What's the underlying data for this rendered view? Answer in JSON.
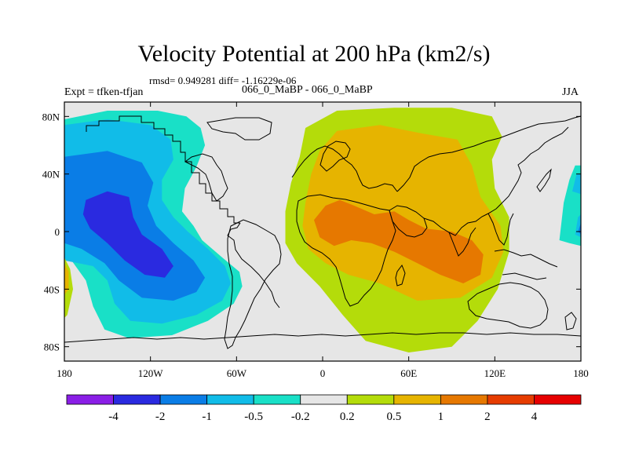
{
  "chart_data": {
    "type": "heatmap",
    "title": "Velocity Potential at 200 hPa (km2/s)",
    "stats": "rmsd= 0.949281 diff= -1.16229e-06",
    "experiment_label": "Expt = tfken-tfjan",
    "experiments": "066_0_MaBP - 066_0_MaBP",
    "season": "JJA",
    "x_ticks": [
      "180",
      "120W",
      "60W",
      "0",
      "60E",
      "120E",
      "180"
    ],
    "x_values": [
      -180,
      -120,
      -60,
      0,
      60,
      120,
      180
    ],
    "y_ticks": [
      "80N",
      "40N",
      "0",
      "40S",
      "80S"
    ],
    "y_values": [
      80,
      40,
      0,
      -40,
      -80
    ],
    "xlim": [
      -180,
      180
    ],
    "ylim": [
      -90,
      90
    ],
    "colorbar": {
      "labels": [
        "-4",
        "-2",
        "-1",
        "-0.5",
        "-0.2",
        "0.2",
        "0.5",
        "1",
        "2",
        "4"
      ],
      "colors": [
        "#8a1ee6",
        "#2a2ae0",
        "#0a7de6",
        "#11bce8",
        "#19e0c7",
        "#e6e6e6",
        "#b4dc0a",
        "#e6b400",
        "#e67800",
        "#e63c00",
        "#e60000"
      ]
    },
    "contours": [
      {
        "level": "-0.2",
        "color": "#19e0c7",
        "polygon": [
          [
            -180,
            78
          ],
          [
            -150,
            84
          ],
          [
            -115,
            84
          ],
          [
            -95,
            80
          ],
          [
            -85,
            72
          ],
          [
            -82,
            60
          ],
          [
            -88,
            45
          ],
          [
            -96,
            30
          ],
          [
            -98,
            14
          ],
          [
            -90,
            4
          ],
          [
            -84,
            -6
          ],
          [
            -70,
            -18
          ],
          [
            -58,
            -28
          ],
          [
            -56,
            -38
          ],
          [
            -62,
            -50
          ],
          [
            -80,
            -62
          ],
          [
            -105,
            -72
          ],
          [
            -135,
            -74
          ],
          [
            -152,
            -68
          ],
          [
            -160,
            -52
          ],
          [
            -165,
            -34
          ],
          [
            -175,
            -20
          ],
          [
            -180,
            -18
          ]
        ]
      },
      {
        "level": "-0.5",
        "color": "#11bce8",
        "polygon": [
          [
            -180,
            74
          ],
          [
            -150,
            78
          ],
          [
            -120,
            74
          ],
          [
            -106,
            64
          ],
          [
            -104,
            50
          ],
          [
            -112,
            36
          ],
          [
            -112,
            22
          ],
          [
            -104,
            10
          ],
          [
            -94,
            0
          ],
          [
            -80,
            -12
          ],
          [
            -68,
            -24
          ],
          [
            -64,
            -36
          ],
          [
            -70,
            -48
          ],
          [
            -88,
            -58
          ],
          [
            -112,
            -64
          ],
          [
            -134,
            -62
          ],
          [
            -145,
            -50
          ],
          [
            -150,
            -34
          ],
          [
            -160,
            -24
          ],
          [
            -180,
            -20
          ]
        ]
      },
      {
        "level": "-1",
        "color": "#0a7de6",
        "polygon": [
          [
            -180,
            52
          ],
          [
            -150,
            56
          ],
          [
            -126,
            48
          ],
          [
            -118,
            34
          ],
          [
            -122,
            18
          ],
          [
            -116,
            4
          ],
          [
            -104,
            -8
          ],
          [
            -90,
            -20
          ],
          [
            -82,
            -32
          ],
          [
            -88,
            -42
          ],
          [
            -104,
            -48
          ],
          [
            -126,
            -46
          ],
          [
            -142,
            -34
          ],
          [
            -152,
            -22
          ],
          [
            -168,
            -12
          ],
          [
            -180,
            -8
          ]
        ]
      },
      {
        "level": "-2",
        "color": "#2a2ae0",
        "polygon": [
          [
            -165,
            22
          ],
          [
            -150,
            28
          ],
          [
            -135,
            24
          ],
          [
            -132,
            10
          ],
          [
            -126,
            -2
          ],
          [
            -112,
            -12
          ],
          [
            -104,
            -24
          ],
          [
            -110,
            -32
          ],
          [
            -124,
            -30
          ],
          [
            -138,
            -20
          ],
          [
            -150,
            -8
          ],
          [
            -162,
            2
          ],
          [
            -167,
            12
          ]
        ]
      },
      {
        "level": "0.2",
        "color": "#b4dc0a",
        "polygon": [
          [
            -12,
            72
          ],
          [
            10,
            84
          ],
          [
            50,
            86
          ],
          [
            90,
            86
          ],
          [
            118,
            80
          ],
          [
            125,
            66
          ],
          [
            118,
            50
          ],
          [
            120,
            30
          ],
          [
            130,
            10
          ],
          [
            130,
            -14
          ],
          [
            122,
            -40
          ],
          [
            108,
            -62
          ],
          [
            90,
            -80
          ],
          [
            60,
            -84
          ],
          [
            30,
            -76
          ],
          [
            14,
            -58
          ],
          [
            -2,
            -38
          ],
          [
            -18,
            -22
          ],
          [
            -26,
            -8
          ],
          [
            -26,
            14
          ],
          [
            -22,
            34
          ],
          [
            -16,
            52
          ]
        ]
      },
      {
        "level": "0.5",
        "color": "#e6b400",
        "polygon": [
          [
            -2,
            56
          ],
          [
            10,
            70
          ],
          [
            40,
            74
          ],
          [
            70,
            68
          ],
          [
            94,
            64
          ],
          [
            104,
            46
          ],
          [
            110,
            24
          ],
          [
            124,
            4
          ],
          [
            126,
            -14
          ],
          [
            118,
            -32
          ],
          [
            96,
            -46
          ],
          [
            66,
            -48
          ],
          [
            40,
            -36
          ],
          [
            18,
            -30
          ],
          [
            2,
            -22
          ],
          [
            -10,
            -12
          ],
          [
            -14,
            4
          ],
          [
            -12,
            20
          ],
          [
            -8,
            40
          ]
        ]
      },
      {
        "level": "1",
        "color": "#e67800",
        "polygon": [
          [
            -6,
            8
          ],
          [
            2,
            18
          ],
          [
            12,
            22
          ],
          [
            22,
            18
          ],
          [
            36,
            12
          ],
          [
            50,
            14
          ],
          [
            60,
            8
          ],
          [
            72,
            2
          ],
          [
            90,
            0
          ],
          [
            104,
            -6
          ],
          [
            112,
            -16
          ],
          [
            110,
            -30
          ],
          [
            98,
            -36
          ],
          [
            82,
            -30
          ],
          [
            66,
            -22
          ],
          [
            50,
            -14
          ],
          [
            34,
            -8
          ],
          [
            20,
            -6
          ],
          [
            8,
            -10
          ],
          [
            -2,
            -4
          ]
        ]
      }
    ],
    "east_edge_patches": [
      {
        "level": "-0.2",
        "color": "#19e0c7",
        "polygon": [
          [
            165,
            -6
          ],
          [
            168,
            20
          ],
          [
            172,
            36
          ],
          [
            176,
            46
          ],
          [
            180,
            46
          ],
          [
            180,
            -10
          ],
          [
            172,
            -8
          ]
        ]
      },
      {
        "level": "-0.5",
        "color": "#11bce8",
        "polygon": [
          [
            174,
            28
          ],
          [
            177,
            40
          ],
          [
            180,
            40
          ],
          [
            180,
            26
          ]
        ]
      },
      {
        "level": "-0.5",
        "color": "#11bce8",
        "polygon": [
          [
            176,
            -2
          ],
          [
            178,
            10
          ],
          [
            180,
            12
          ],
          [
            180,
            -4
          ]
        ]
      },
      {
        "level": "-1",
        "color": "#0a7de6",
        "polygon": [
          [
            178,
            0
          ],
          [
            180,
            6
          ],
          [
            180,
            -2
          ]
        ]
      }
    ],
    "west_edge_patches": [
      {
        "level": "0.2",
        "color": "#b4dc0a",
        "polygon": [
          [
            -180,
            -18
          ],
          [
            -176,
            -26
          ],
          [
            -174,
            -40
          ],
          [
            -178,
            -58
          ],
          [
            -180,
            -60
          ]
        ]
      },
      {
        "level": "0.5",
        "color": "#e6b400",
        "polygon": [
          [
            -180,
            -22
          ],
          [
            -177,
            -28
          ],
          [
            -177,
            -40
          ],
          [
            -180,
            -44
          ]
        ]
      }
    ]
  }
}
